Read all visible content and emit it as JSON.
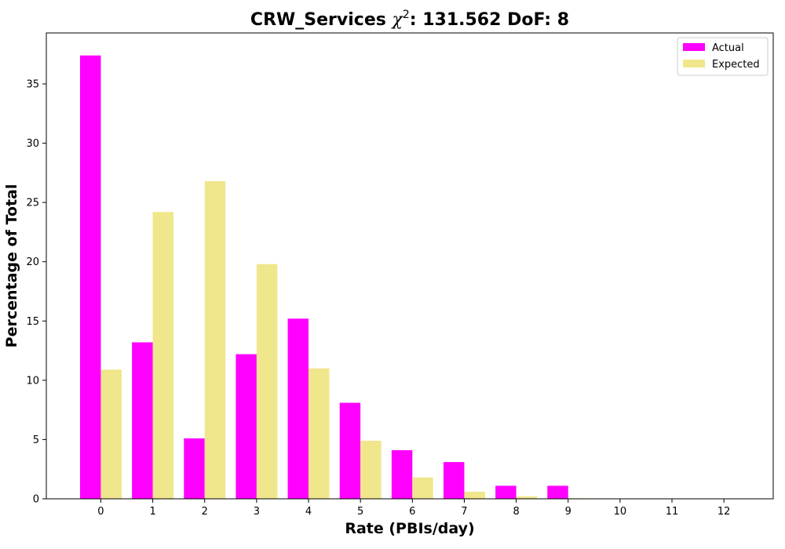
{
  "chart_data": {
    "type": "bar",
    "title_prefix": "CRW_Services ",
    "title_chi": "χ",
    "title_sup": "2",
    "title_suffix": ": 131.562 DoF: 8",
    "xlabel": "Rate (PBIs/day)",
    "ylabel": "Percentage of Total",
    "categories": [
      "0",
      "1",
      "2",
      "3",
      "4",
      "5",
      "6",
      "7",
      "8",
      "9",
      "10",
      "11",
      "12"
    ],
    "series": [
      {
        "name": "Actual",
        "color": "#ff00ff",
        "values": [
          37.4,
          13.2,
          5.1,
          12.2,
          15.2,
          8.1,
          4.1,
          3.1,
          1.1,
          1.1,
          0,
          0,
          0
        ]
      },
      {
        "name": "Expected",
        "color": "#f0e68c",
        "values": [
          10.9,
          24.2,
          26.8,
          19.8,
          11.0,
          4.9,
          1.8,
          0.6,
          0.2,
          0.05,
          0,
          0,
          0
        ]
      }
    ],
    "yticks": [
      0,
      5,
      10,
      15,
      20,
      25,
      30,
      35
    ],
    "ylim": [
      0,
      39.3
    ],
    "xlim": [
      -1.05,
      12.95
    ],
    "legend_position": "top-right",
    "grid": false
  }
}
